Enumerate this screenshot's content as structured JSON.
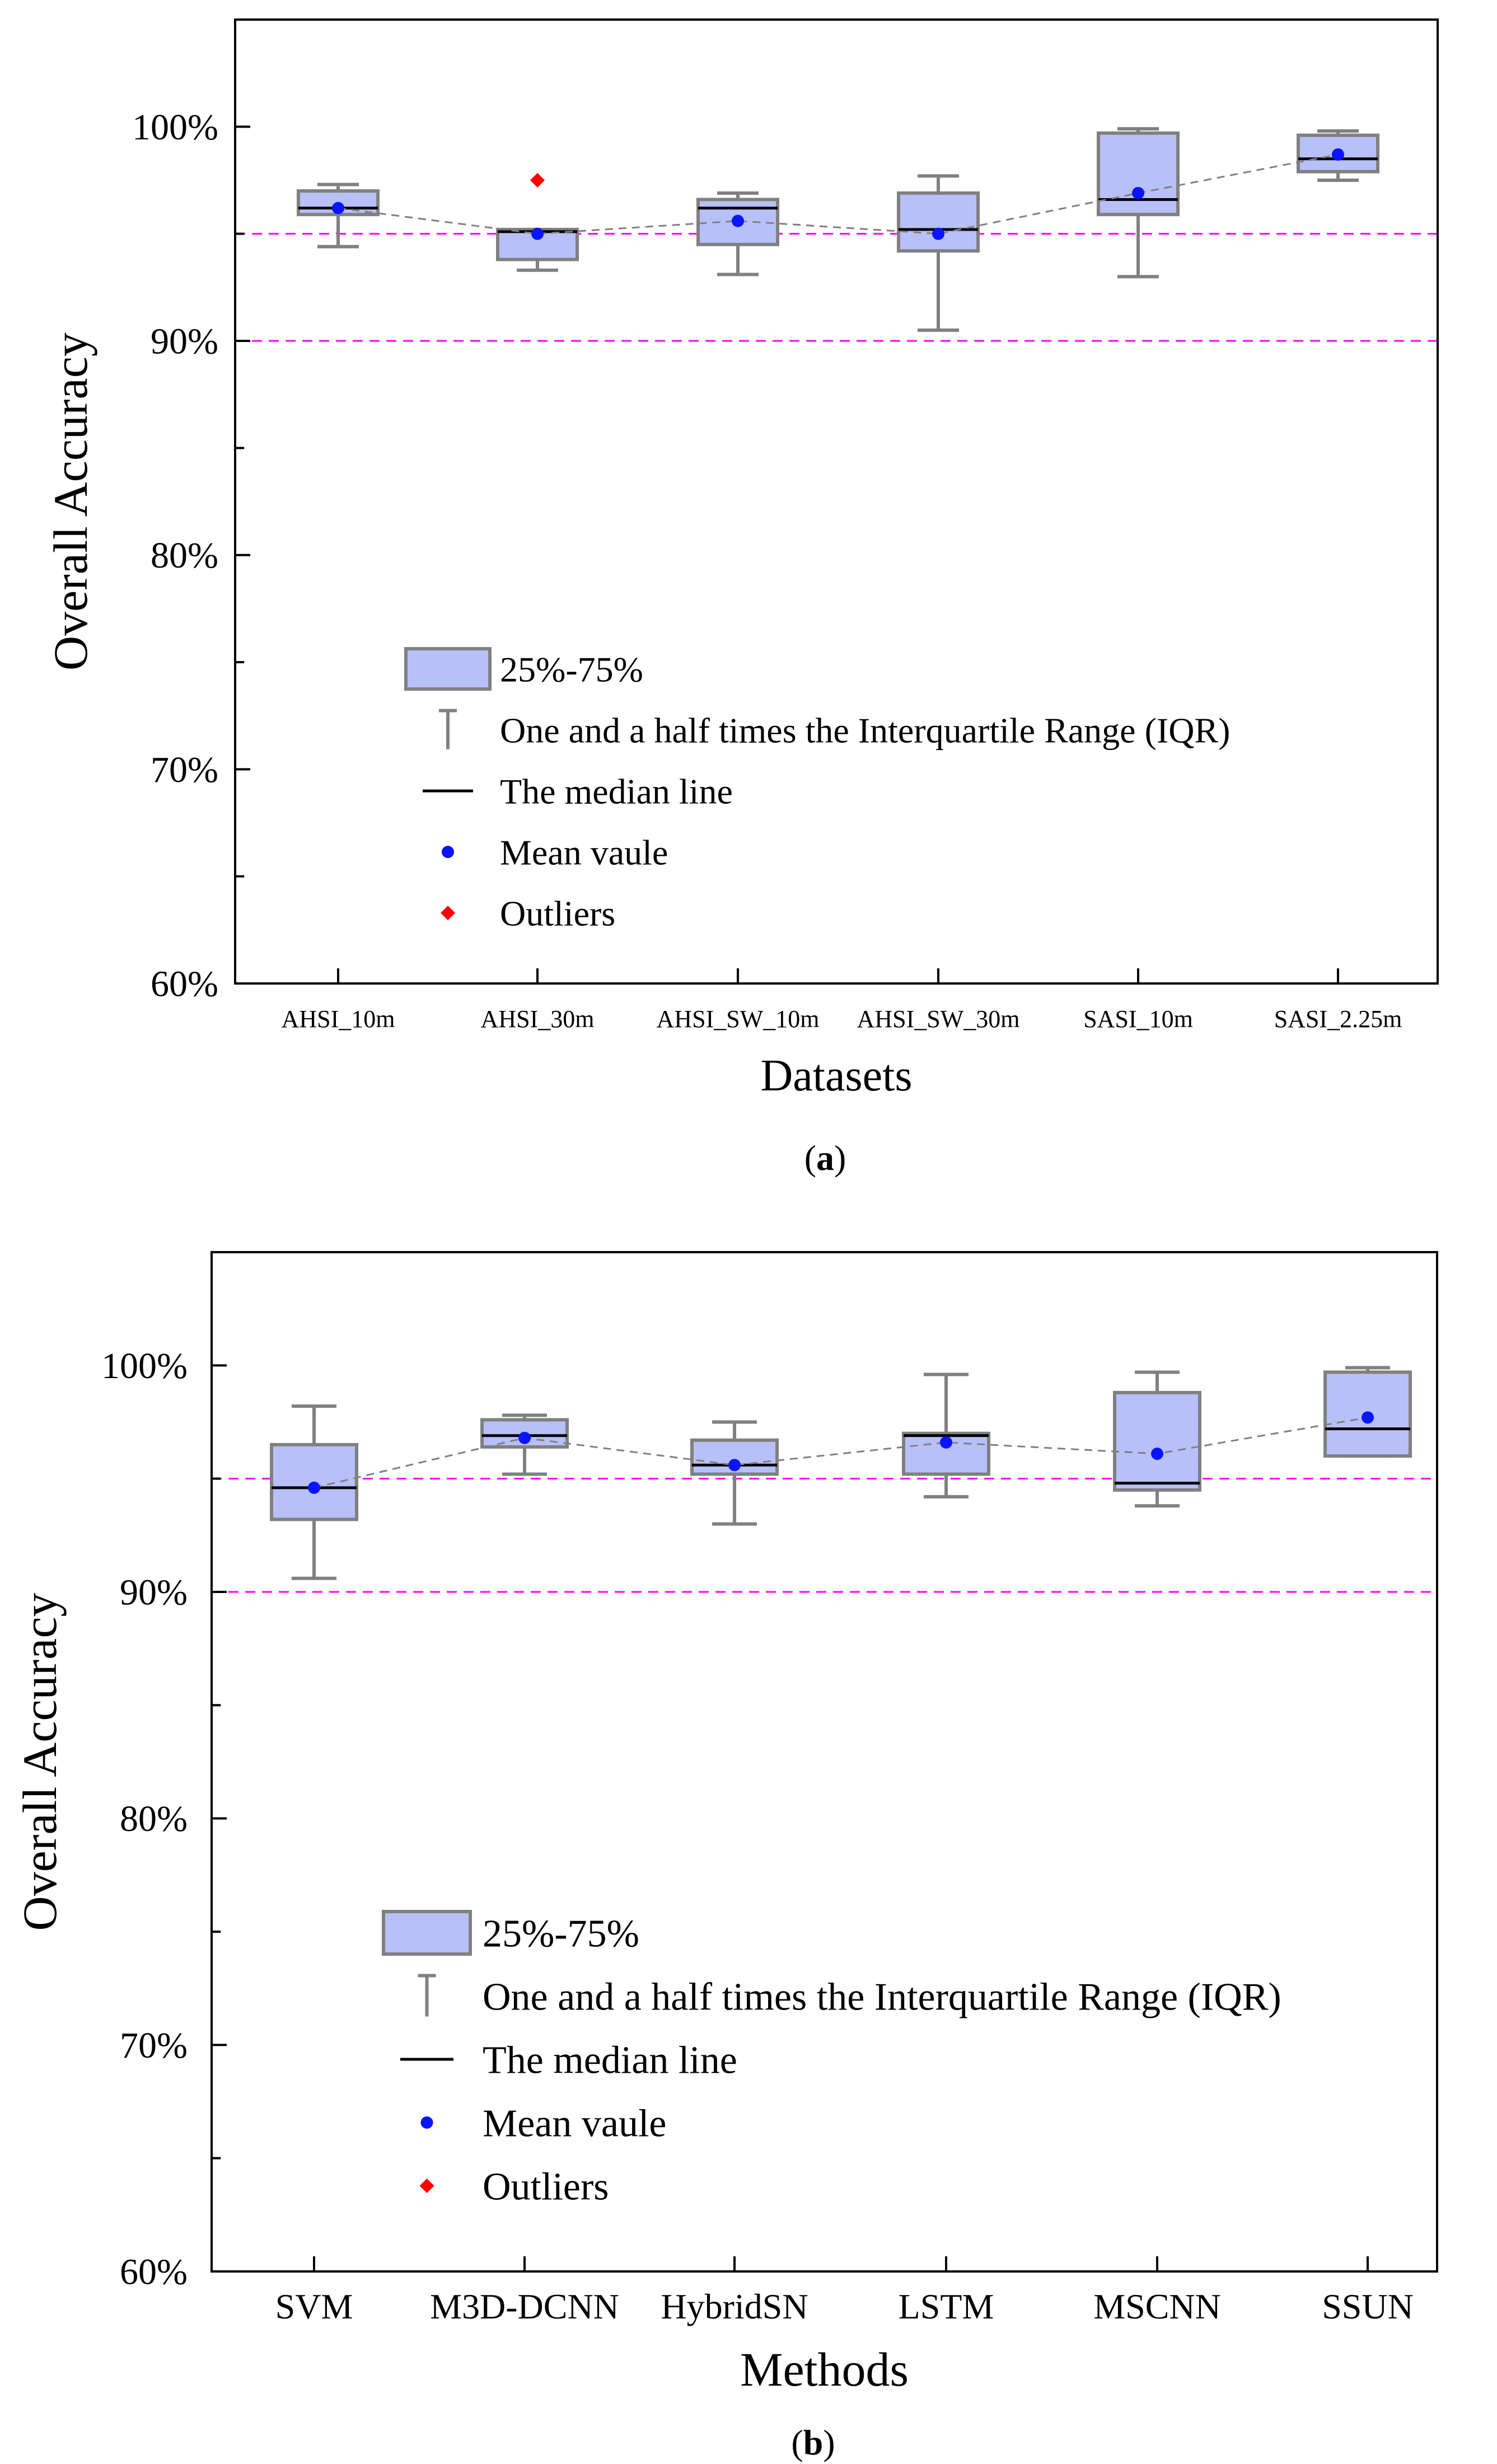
{
  "chart_data": [
    {
      "type": "box",
      "panel_label": "a",
      "xlabel": "Datasets",
      "ylabel": "Overall Accuracy",
      "ylim": [
        60,
        105
      ],
      "yticks": [
        "60%",
        "70%",
        "80%",
        "90%",
        "100%"
      ],
      "categories": [
        "AHSI_10m",
        "AHSI_30m",
        "AHSI_SW_10m",
        "AHSI_SW_30m",
        "SASI_10m",
        "SASI_2.25m"
      ],
      "reference_lines": [
        95,
        90
      ],
      "boxes": [
        {
          "whisker_low": 94.4,
          "q1": 95.9,
          "median": 96.2,
          "q3": 97.0,
          "whisker_high": 97.3,
          "mean": 96.2,
          "outliers": []
        },
        {
          "whisker_low": 93.3,
          "q1": 93.8,
          "median": 95.1,
          "q3": 95.2,
          "whisker_high": 95.2,
          "mean": 95.0,
          "outliers": [
            97.5
          ]
        },
        {
          "whisker_low": 93.1,
          "q1": 94.5,
          "median": 96.2,
          "q3": 96.6,
          "whisker_high": 96.9,
          "mean": 95.6,
          "outliers": []
        },
        {
          "whisker_low": 90.5,
          "q1": 94.2,
          "median": 95.2,
          "q3": 96.9,
          "whisker_high": 97.7,
          "mean": 95.0,
          "outliers": []
        },
        {
          "whisker_low": 93.0,
          "q1": 95.9,
          "median": 96.6,
          "q3": 99.7,
          "whisker_high": 99.9,
          "mean": 96.9,
          "outliers": []
        },
        {
          "whisker_low": 97.5,
          "q1": 97.9,
          "median": 98.5,
          "q3": 99.6,
          "whisker_high": 99.8,
          "mean": 98.7,
          "outliers": []
        }
      ],
      "legend": {
        "placement": "center-left",
        "entries": [
          "25%-75%",
          "One and a half times the Interquartile Range (IQR)",
          "The median line",
          "Mean vaule",
          "Outliers"
        ]
      }
    },
    {
      "type": "box",
      "panel_label": "b",
      "xlabel": "Methods",
      "ylabel": "Overall Accuracy",
      "ylim": [
        60,
        105
      ],
      "yticks": [
        "60%",
        "70%",
        "80%",
        "90%",
        "100%"
      ],
      "categories": [
        "SVM",
        "M3D-DCNN",
        "HybridSN",
        "LSTM",
        "MSCNN",
        "SSUN"
      ],
      "reference_lines": [
        95,
        90
      ],
      "boxes": [
        {
          "whisker_low": 90.6,
          "q1": 93.2,
          "median": 94.6,
          "q3": 96.5,
          "whisker_high": 98.2,
          "mean": 94.6,
          "outliers": []
        },
        {
          "whisker_low": 95.2,
          "q1": 96.4,
          "median": 96.9,
          "q3": 97.6,
          "whisker_high": 97.8,
          "mean": 96.8,
          "outliers": []
        },
        {
          "whisker_low": 93.0,
          "q1": 95.2,
          "median": 95.6,
          "q3": 96.7,
          "whisker_high": 97.5,
          "mean": 95.6,
          "outliers": []
        },
        {
          "whisker_low": 94.2,
          "q1": 95.2,
          "median": 96.9,
          "q3": 97.0,
          "whisker_high": 99.6,
          "mean": 96.6,
          "outliers": []
        },
        {
          "whisker_low": 93.8,
          "q1": 94.5,
          "median": 94.8,
          "q3": 98.8,
          "whisker_high": 99.7,
          "mean": 96.1,
          "outliers": []
        },
        {
          "whisker_low": 96.0,
          "q1": 96.0,
          "median": 97.2,
          "q3": 99.7,
          "whisker_high": 99.9,
          "mean": 97.7,
          "outliers": []
        }
      ],
      "legend": {
        "placement": "center-left",
        "entries": [
          "25%-75%",
          "One and a half times the Interquartile Range (IQR)",
          "The median line",
          "Mean vaule",
          "Outliers"
        ]
      }
    }
  ],
  "colors": {
    "box_fill": "#b8c0f8",
    "box_stroke": "#808080",
    "median": "#000000",
    "mean": "#0a14ff",
    "outlier": "#ff0000",
    "reference_line": "#ff00ff",
    "mean_trend": "#808080",
    "axis": "#000000"
  }
}
